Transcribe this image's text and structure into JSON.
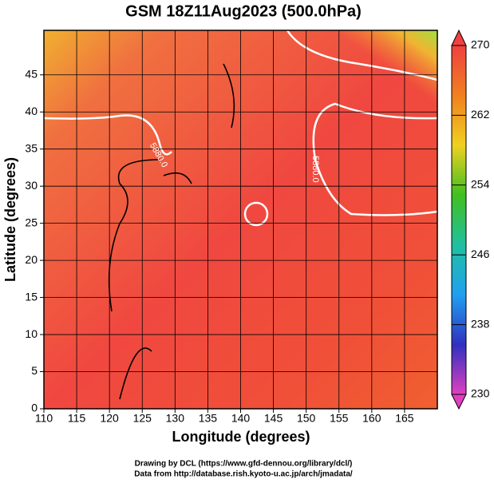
{
  "chart_data": {
    "type": "map",
    "title": "GSM 18Z11Aug2023 (500.0hPa)",
    "xlabel": "Longitude (degrees)",
    "ylabel": "Latitude  (degrees)",
    "xlim": [
      110,
      170
    ],
    "ylim": [
      0,
      51
    ],
    "xticks": [
      110,
      115,
      120,
      125,
      130,
      135,
      140,
      145,
      150,
      155,
      160,
      165
    ],
    "yticks": [
      0,
      5,
      10,
      15,
      20,
      25,
      30,
      35,
      40,
      45
    ],
    "grid": true,
    "colorbar": {
      "lim": [
        230,
        270
      ],
      "ticks": [
        230,
        238,
        246,
        254,
        262,
        270
      ],
      "colors": [
        "#e040c0",
        "#3030c0",
        "#20a0f0",
        "#20c0a0",
        "#40c020",
        "#f0d020",
        "#f08020",
        "#f04040"
      ]
    },
    "contour_labels": [
      "5880.0",
      "5880.0"
    ],
    "credits": [
      "Drawing by DCL (https://www.gfd-dennou.org/library/dcl/)",
      "Data from http://database.rish.kyoto-u.ac.jp/arch/jmadata/"
    ]
  }
}
